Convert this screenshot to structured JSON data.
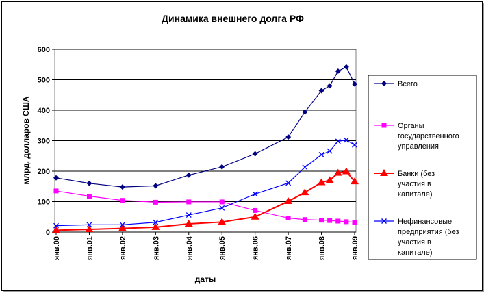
{
  "chart_data": {
    "type": "line",
    "title": "Динамика внешнего долга РФ",
    "xlabel": "даты",
    "ylabel": "млрд. долларов США",
    "ylim": [
      0,
      600
    ],
    "yticks": [
      "0",
      "100",
      "200",
      "300",
      "400",
      "500",
      "600"
    ],
    "categories": [
      "янв.00",
      "янв.01",
      "янв.02",
      "янв.03",
      "янв.04",
      "янв.05",
      "янв.06",
      "янв.07",
      "янв.08",
      "янв.09"
    ],
    "grid": true,
    "legend_position": "right",
    "series": [
      {
        "name": "Всего",
        "color": "#000080",
        "marker": "diamond",
        "points": [
          [
            0,
            178
          ],
          [
            1,
            160
          ],
          [
            2,
            148
          ],
          [
            3,
            152
          ],
          [
            4,
            187
          ],
          [
            5,
            214
          ],
          [
            6,
            257
          ],
          [
            7,
            312
          ],
          [
            7.5,
            394
          ],
          [
            8,
            464
          ],
          [
            8.25,
            480
          ],
          [
            8.5,
            528
          ],
          [
            8.75,
            542
          ],
          [
            9,
            486
          ]
        ]
      },
      {
        "name": "Органы государственного управления",
        "color": "#FF00FF",
        "marker": "square",
        "points": [
          [
            0,
            135
          ],
          [
            1,
            118
          ],
          [
            2,
            104
          ],
          [
            3,
            98
          ],
          [
            4,
            99
          ],
          [
            5,
            99
          ],
          [
            6,
            71
          ],
          [
            7,
            46
          ],
          [
            7.5,
            41
          ],
          [
            8,
            39
          ],
          [
            8.25,
            38
          ],
          [
            8.5,
            36
          ],
          [
            8.75,
            34
          ],
          [
            9,
            32
          ]
        ]
      },
      {
        "name": "Банки (без участия в капитале)",
        "color": "#FF0000",
        "marker": "triangle",
        "points": [
          [
            0,
            6
          ],
          [
            1,
            9
          ],
          [
            2,
            12
          ],
          [
            3,
            16
          ],
          [
            4,
            27
          ],
          [
            5,
            33
          ],
          [
            6,
            50
          ],
          [
            7,
            101
          ],
          [
            7.5,
            130
          ],
          [
            8,
            163
          ],
          [
            8.25,
            170
          ],
          [
            8.5,
            194
          ],
          [
            8.75,
            199
          ],
          [
            9,
            166
          ]
        ]
      },
      {
        "name": "Нефинансовые предприятия (без участия в капитале)",
        "color": "#0000FF",
        "marker": "x",
        "points": [
          [
            0,
            21
          ],
          [
            1,
            24
          ],
          [
            2,
            24
          ],
          [
            3,
            32
          ],
          [
            4,
            56
          ],
          [
            5,
            79
          ],
          [
            6,
            125
          ],
          [
            7,
            161
          ],
          [
            7.5,
            213
          ],
          [
            8,
            254
          ],
          [
            8.25,
            266
          ],
          [
            8.5,
            298
          ],
          [
            8.75,
            302
          ],
          [
            9,
            286
          ]
        ]
      }
    ]
  }
}
